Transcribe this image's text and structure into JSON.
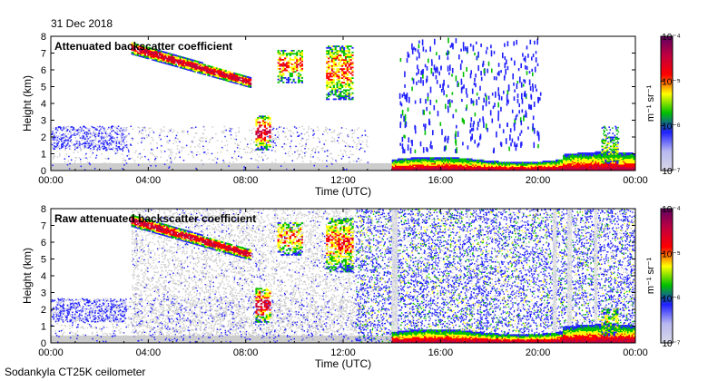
{
  "date_label": "31 Dec 2018",
  "footer_label": "Sodankyla CT25K ceilometer",
  "colors": {
    "colormap": [
      "#d8d8e8",
      "#b8b8f0",
      "#2020ff",
      "#00c000",
      "#ffff00",
      "#ff0000",
      "#c00040",
      "#600060"
    ],
    "noise_gray": "#cccccc",
    "axis": "#000000"
  },
  "chart_data": [
    {
      "type": "heatmap",
      "title": "Attenuated backscatter coefficient",
      "xlabel": "Time (UTC)",
      "ylabel": "Height (km)",
      "x_ticks": [
        "00:00",
        "04:00",
        "08:00",
        "12:00",
        "16:00",
        "20:00",
        "00:00"
      ],
      "xlim": [
        0,
        24
      ],
      "y_ticks": [
        "0",
        "1",
        "2",
        "3",
        "4",
        "5",
        "6",
        "7",
        "8"
      ],
      "ylim": [
        0,
        8
      ],
      "colorbar": {
        "scale": "log",
        "range": [
          1e-07,
          0.0001
        ],
        "tick_labels": [
          "10⁻⁷",
          "10⁻⁶",
          "10⁻⁵",
          "10⁻⁴"
        ],
        "label": "m⁻¹ sr⁻¹"
      },
      "features": [
        {
          "name": "high cloud layer",
          "t": [
            3.3,
            8.2
          ],
          "h_start": [
            7.4,
            7.0
          ],
          "h_end": [
            5.4,
            4.9
          ]
        },
        {
          "name": "cloud 09-10 UTC",
          "t": [
            9.3,
            10.4
          ],
          "h": [
            5.2,
            7.1
          ]
        },
        {
          "name": "cloud 11-12 UTC",
          "t": [
            11.3,
            12.5
          ],
          "h": [
            4.0,
            7.4
          ]
        },
        {
          "name": "low-level aerosol/fog",
          "t": [
            14.0,
            24.0
          ],
          "h": [
            0.0,
            1.2
          ]
        },
        {
          "name": "boundary layer cloud 08:30",
          "t": [
            8.4,
            9.0
          ],
          "h": [
            1.0,
            3.2
          ]
        }
      ]
    },
    {
      "type": "heatmap",
      "title": "Raw attenuated backscatter coefficient",
      "xlabel": "Time (UTC)",
      "ylabel": "Height (km)",
      "x_ticks": [
        "00:00",
        "04:00",
        "08:00",
        "12:00",
        "16:00",
        "20:00",
        "00:00"
      ],
      "xlim": [
        0,
        24
      ],
      "y_ticks": [
        "0",
        "1",
        "2",
        "3",
        "4",
        "5",
        "6",
        "7",
        "8"
      ],
      "ylim": [
        0,
        8
      ],
      "colorbar": {
        "scale": "log",
        "range": [
          1e-07,
          0.0001
        ],
        "tick_labels": [
          "10⁻⁷",
          "10⁻⁶",
          "10⁻⁵",
          "10⁻⁴"
        ],
        "label": "m⁻¹ sr⁻¹"
      }
    }
  ]
}
